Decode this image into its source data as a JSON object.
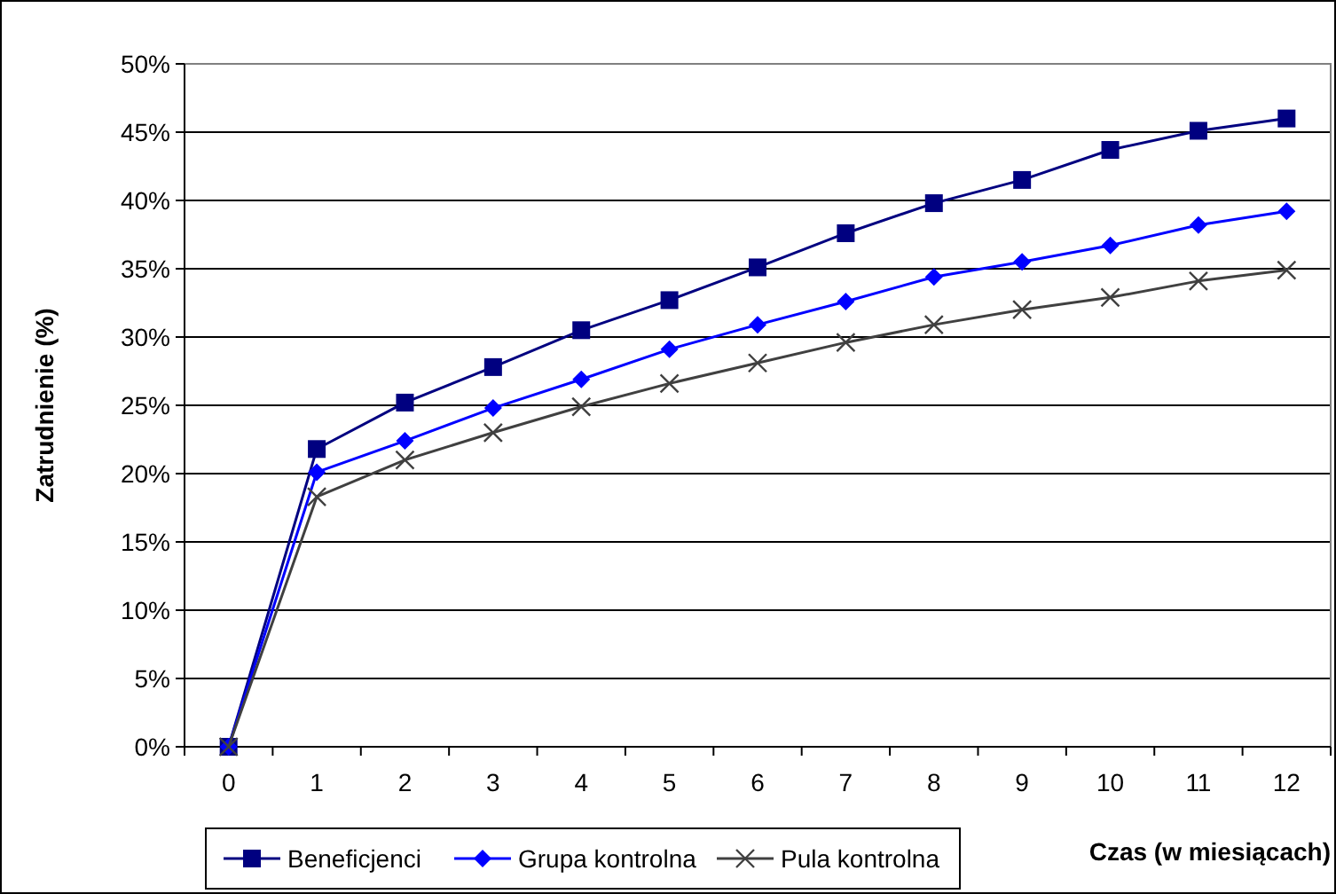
{
  "chart_data": {
    "type": "line",
    "xlabel": "Czas (w miesiącach)",
    "ylabel": "Zatrudnienie (%)",
    "x": [
      0,
      1,
      2,
      3,
      4,
      5,
      6,
      7,
      8,
      9,
      10,
      11,
      12
    ],
    "xlim": [
      -0.5,
      12.5
    ],
    "xticks": [
      {
        "value": -0.5,
        "label": null
      },
      0,
      {
        "value": 0.5,
        "label": null
      },
      1,
      {
        "value": 1.5,
        "label": null
      },
      2,
      {
        "value": 2.5,
        "label": null
      },
      3,
      {
        "value": 3.5,
        "label": null
      },
      4,
      {
        "value": 4.5,
        "label": null
      },
      5,
      {
        "value": 5.5,
        "label": null
      },
      6,
      {
        "value": 6.5,
        "label": null
      },
      7,
      {
        "value": 7.5,
        "label": null
      },
      8,
      {
        "value": 8.5,
        "label": null
      },
      9,
      {
        "value": 9.5,
        "label": null
      },
      10,
      {
        "value": 10.5,
        "label": null
      },
      11,
      {
        "value": 11.5,
        "label": null
      },
      12,
      {
        "value": 12.5,
        "label": null
      }
    ],
    "series": [
      {
        "name": "Beneficjenci",
        "color": "#000080",
        "marker": "square",
        "values": [
          0,
          21.8,
          25.2,
          27.8,
          30.5,
          32.7,
          35.1,
          37.6,
          39.8,
          41.5,
          43.7,
          45.1,
          46.0
        ]
      },
      {
        "name": "Grupa kontrolna",
        "color": "#0000ff",
        "marker": "diamond",
        "values": [
          0,
          20.1,
          22.4,
          24.8,
          26.9,
          29.1,
          30.9,
          32.6,
          34.4,
          35.5,
          36.7,
          38.2,
          39.2
        ]
      },
      {
        "name": "Pula kontrolna",
        "color": "#404040",
        "marker": "cross",
        "values": [
          0,
          18.3,
          21.0,
          23.0,
          24.9,
          26.6,
          28.1,
          29.6,
          30.9,
          32.0,
          32.9,
          34.1,
          34.9
        ]
      }
    ],
    "ylim": [
      0,
      50
    ],
    "yticks": [
      {
        "value": 0,
        "label": "0%"
      },
      {
        "value": 5,
        "label": "5%"
      },
      {
        "value": 10,
        "label": "10%"
      },
      {
        "value": 15,
        "label": "15%"
      },
      {
        "value": 20,
        "label": "20%"
      },
      {
        "value": 25,
        "label": "25%"
      },
      {
        "value": 30,
        "label": "30%"
      },
      {
        "value": 35,
        "label": "35%"
      },
      {
        "value": 40,
        "label": "40%"
      },
      {
        "value": 45,
        "label": "45%"
      },
      {
        "value": 50,
        "label": "50%"
      }
    ],
    "grid": "y",
    "legend": "bottom",
    "line_style": "solid"
  }
}
